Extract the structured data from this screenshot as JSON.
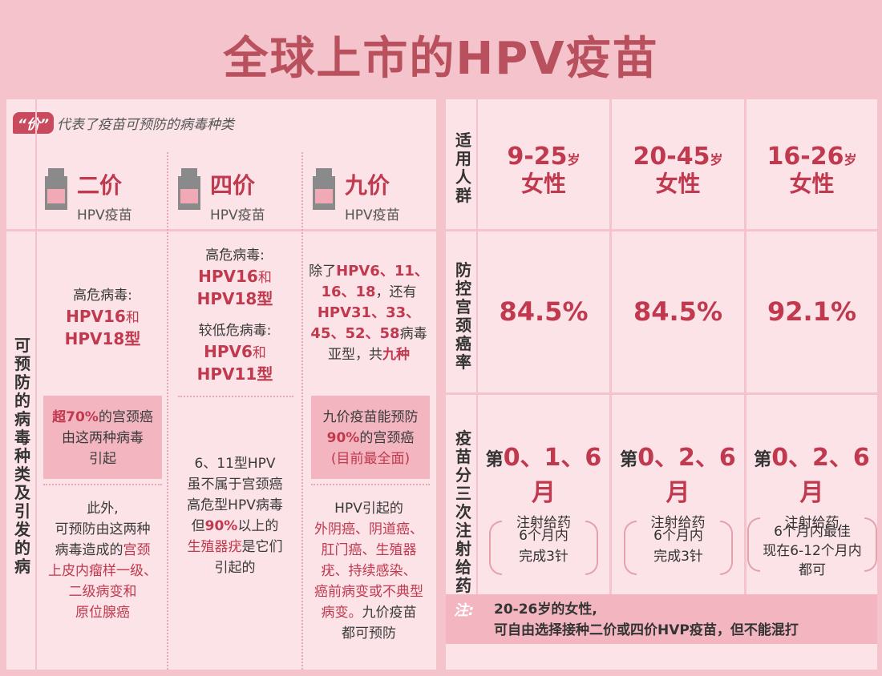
{
  "title": "全球上市的HPV疫苗",
  "legend": {
    "tag": "“价”",
    "text": "代表了疫苗可预防的病毒种类"
  },
  "vaccines": [
    {
      "name": "二价",
      "sub": "HPV疫苗"
    },
    {
      "name": "四价",
      "sub": "HPV疫苗"
    },
    {
      "name": "九价",
      "sub": "HPV疫苗"
    }
  ],
  "left_side_label": "可预防的病毒种类及引发的病",
  "col1": {
    "l1": "高危病毒:",
    "l2": "HPV16",
    "l2b": "和",
    "l3": "HPV18型",
    "box_hl": "超70%",
    "box_1": "的宫颈癌",
    "box_2": "由这两种病毒",
    "box_3": "引起",
    "b1": "此外,",
    "b2": "可预防由这两种",
    "b3a": "病毒造成的",
    "b3b": "宫颈",
    "b4": "上皮内瘤样一级、",
    "b5": "二级病变和",
    "b6": "原位腺癌"
  },
  "col2": {
    "l1": "高危病毒:",
    "l2": "HPV16",
    "l2b": "和",
    "l3": "HPV18型",
    "l4": "较低危病毒:",
    "l5": "HPV6",
    "l5b": "和",
    "l6": "HPV11型",
    "b1": "6、11型HPV",
    "b2": "虽不属于宫颈癌",
    "b3": "高危型HPV病毒",
    "b4a": "但",
    "b4b": "90%",
    "b4c": "以上的",
    "b5a": "生殖器疣",
    "b5b": "是它们",
    "b6": "引起的"
  },
  "col3": {
    "l1a": "除了",
    "l1b": "HPV6、11、",
    "l2a": "16、18",
    "l2b": "，还有",
    "l3": "HPV31、33、",
    "l4a": "45、52、58",
    "l4b": "病毒",
    "l5a": "亚型，共",
    "l5b": "九种",
    "box_1": "九价疫苗能预防",
    "box_hl": "90%",
    "box_2": "的宫颈癌",
    "box_3": "(目前最全面)",
    "b1": "HPV引起的",
    "b2": "外阴癌、阴道癌、",
    "b3": "肛门癌、生殖器",
    "b4": "疣、持续感染、",
    "b5": "癌前病变或不典型",
    "b6a": "病变。",
    "b6b": "九价疫苗",
    "b7": "都可预防"
  },
  "right": {
    "row1_label": "适用人群",
    "row2_label": "防控宫颈癌率",
    "row3_label": "疫苗分三次注射给药",
    "ages": [
      {
        "num": "9-25",
        "unit": "岁",
        "who": "女性"
      },
      {
        "num": "20-45",
        "unit": "岁",
        "who": "女性"
      },
      {
        "num": "16-26",
        "unit": "岁",
        "who": "女性"
      }
    ],
    "rates": [
      "84.5%",
      "84.5%",
      "92.1%"
    ],
    "schedules": [
      {
        "prefix": "第",
        "months": "0、1、6月",
        "sub": "注射给药",
        "p1": "6个月内",
        "p2": "完成3针"
      },
      {
        "prefix": "第",
        "months": "0、2、6月",
        "sub": "注射给药",
        "p1": "6个月内",
        "p2": "完成3针"
      },
      {
        "prefix": "第",
        "months": "0、2、6月",
        "sub": "注射给药",
        "p1": "6个月内最佳",
        "p2": "现在6-12个月内",
        "p3": "都可"
      }
    ]
  },
  "note": {
    "label": "注:",
    "line1": "20-26岁的女性,",
    "line2": "可自由选择接种二价或四价HVP疫苗，但不能混打"
  }
}
